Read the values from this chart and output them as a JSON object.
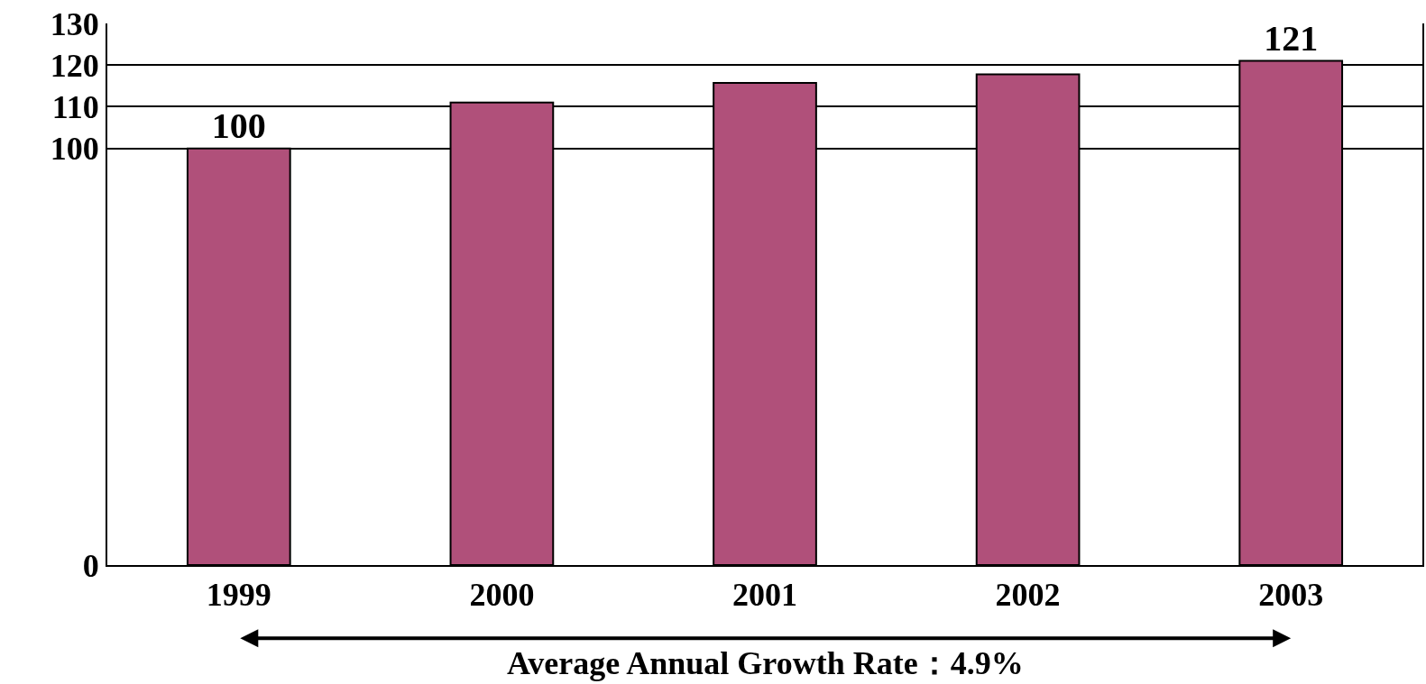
{
  "chart_data": {
    "type": "bar",
    "categories": [
      "1999",
      "2000",
      "2001",
      "2002",
      "2003"
    ],
    "values": [
      100,
      111,
      115.7,
      117.8,
      121
    ],
    "value_labels": [
      "100",
      null,
      null,
      null,
      "121"
    ],
    "color": "#b0507a",
    "ylim": [
      0,
      130
    ],
    "yticks": [
      0,
      100,
      110,
      120,
      130
    ],
    "grid": "y",
    "annotations": [
      "Average Annual Growth Rate：4.9%"
    ]
  }
}
